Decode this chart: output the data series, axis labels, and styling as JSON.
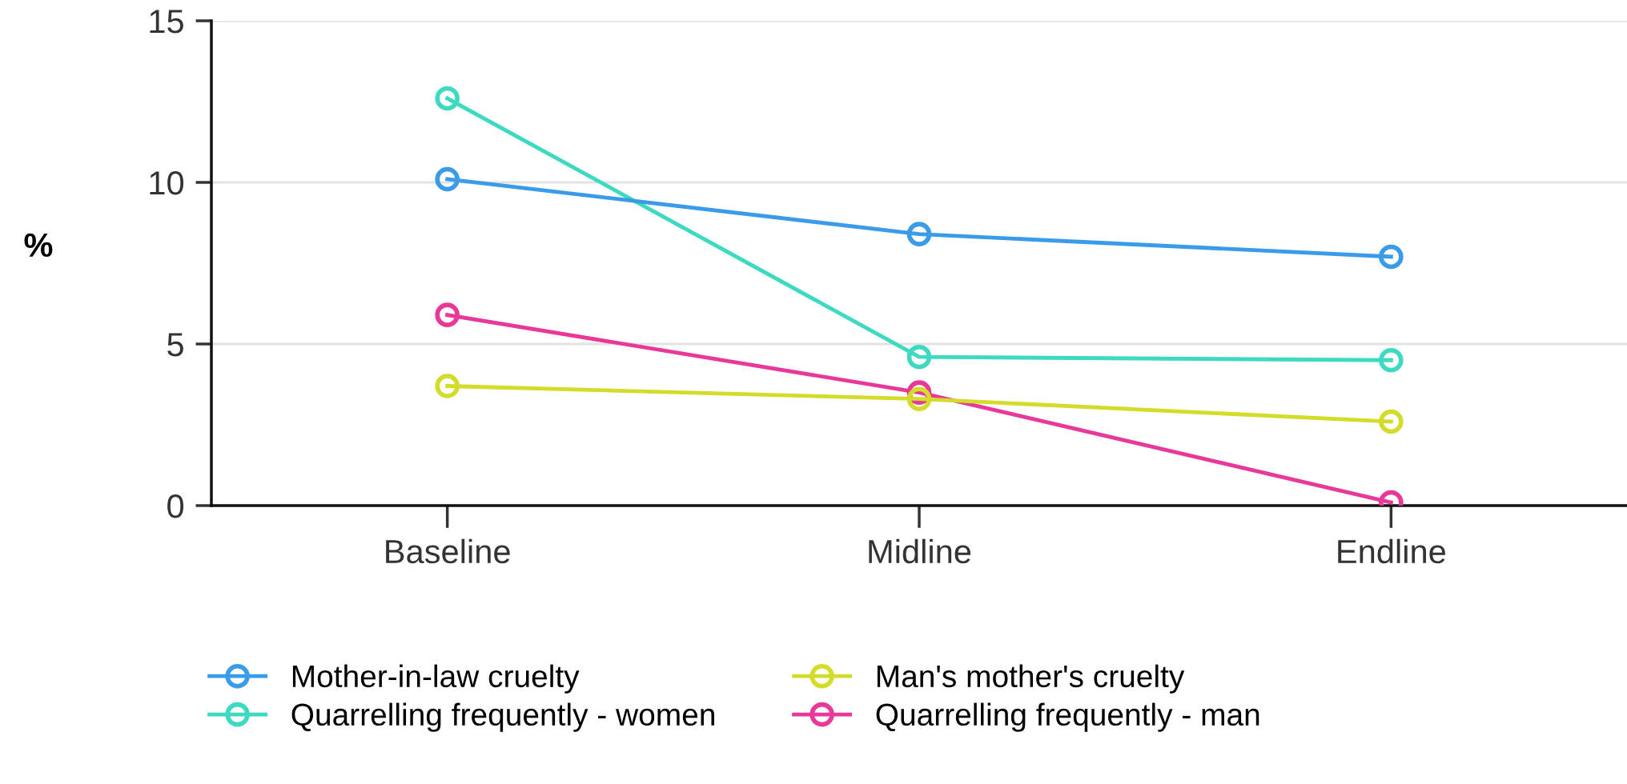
{
  "chart_data": {
    "type": "line",
    "ylabel": "%",
    "categories": [
      "Baseline",
      "Midline",
      "Endline"
    ],
    "series": [
      {
        "name": "Mother-in-law cruelty",
        "color": "#3a9be8",
        "values": [
          10.1,
          8.4,
          7.7
        ]
      },
      {
        "name": "Man's mother's cruelty",
        "color": "#d4dc2a",
        "values": [
          3.7,
          3.3,
          2.6
        ]
      },
      {
        "name": "Quarrelling frequently - women",
        "color": "#3dd9c1",
        "values": [
          12.6,
          4.6,
          4.5
        ]
      },
      {
        "name": "Quarrelling frequently - man",
        "color": "#e8399a",
        "values": [
          5.9,
          3.5,
          0.1
        ]
      }
    ],
    "ylim": [
      0,
      15
    ],
    "yticks": [
      0,
      5,
      10,
      15
    ],
    "grid": "y",
    "legend": "bottom",
    "marker": "circle",
    "line_style": "solid"
  }
}
